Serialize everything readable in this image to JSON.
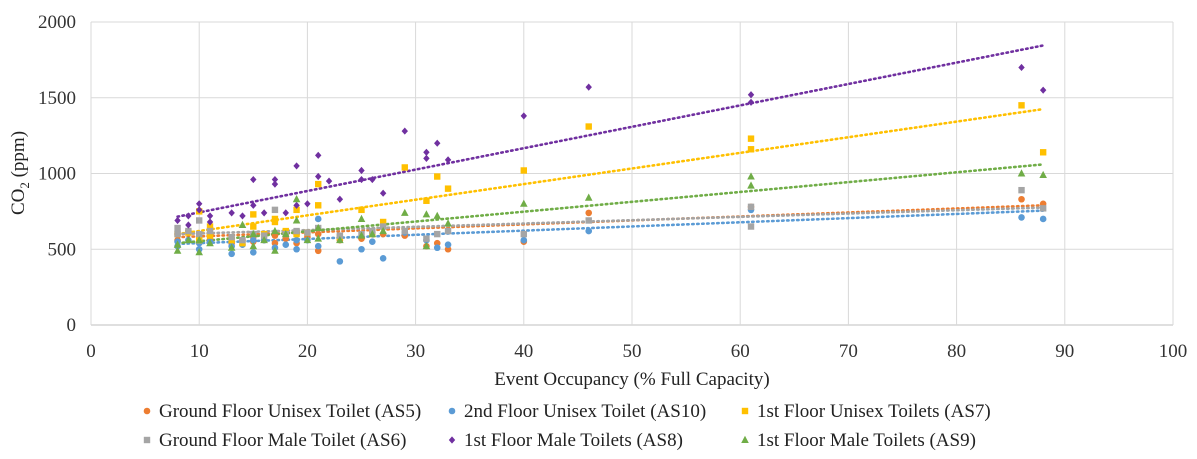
{
  "chart_data": {
    "type": "scatter",
    "title": "",
    "xlabel": "Event Occupancy (% Full Capacity)",
    "ylabel_main": "CO",
    "ylabel_sub": "2",
    "ylabel_suffix": " (ppm)",
    "xlim": [
      0,
      100
    ],
    "ylim": [
      0,
      2000
    ],
    "xticks": [
      0,
      10,
      20,
      30,
      40,
      50,
      60,
      70,
      80,
      90,
      100
    ],
    "yticks": [
      0,
      500,
      1000,
      1500,
      2000
    ],
    "grid": "horizontal and vertical",
    "legend_position": "bottom",
    "trendlines": "linear, dotted",
    "series": [
      {
        "name": "Ground Floor Unisex Toilet (AS5)",
        "color": "#ED7D31",
        "marker": "circle",
        "x": [
          8,
          8,
          9,
          10,
          10,
          11,
          11,
          13,
          14,
          15,
          15,
          16,
          17,
          17,
          18,
          19,
          19,
          20,
          21,
          21,
          23,
          25,
          26,
          27,
          29,
          31,
          32,
          33,
          40,
          46,
          61,
          86,
          88
        ],
        "y": [
          600,
          560,
          620,
          580,
          550,
          600,
          560,
          540,
          560,
          550,
          580,
          560,
          590,
          540,
          570,
          600,
          540,
          580,
          600,
          490,
          560,
          570,
          610,
          600,
          590,
          520,
          540,
          500,
          550,
          740,
          780,
          830,
          800
        ],
        "trend": [
          580,
          790
        ]
      },
      {
        "name": "2nd Floor Unisex Toilet (AS10)",
        "color": "#5B9BD5",
        "marker": "circle",
        "x": [
          8,
          8,
          9,
          10,
          10,
          11,
          13,
          13,
          14,
          15,
          15,
          16,
          17,
          18,
          19,
          19,
          20,
          21,
          21,
          23,
          25,
          26,
          27,
          29,
          31,
          32,
          33,
          40,
          46,
          61,
          86,
          88
        ],
        "y": [
          550,
          520,
          560,
          500,
          540,
          550,
          470,
          520,
          530,
          480,
          560,
          560,
          510,
          530,
          500,
          560,
          560,
          700,
          520,
          420,
          500,
          550,
          440,
          610,
          560,
          510,
          530,
          560,
          620,
          760,
          710,
          700
        ],
        "trend": [
          535,
          755
        ]
      },
      {
        "name": "1st Floor Unisex Toilets (AS7)",
        "color": "#FFC000",
        "marker": "square",
        "x": [
          8,
          9,
          10,
          10,
          11,
          11,
          13,
          14,
          15,
          15,
          16,
          17,
          17,
          18,
          19,
          19,
          20,
          21,
          21,
          23,
          25,
          26,
          27,
          29,
          31,
          32,
          33,
          40,
          46,
          61,
          61,
          86,
          88
        ],
        "y": [
          600,
          610,
          750,
          560,
          650,
          590,
          560,
          540,
          650,
          730,
          600,
          700,
          680,
          620,
          760,
          600,
          610,
          790,
          930,
          580,
          760,
          600,
          680,
          1040,
          820,
          980,
          900,
          1020,
          1310,
          1230,
          1160,
          1450,
          1140
        ],
        "trend": [
          600,
          1425
        ]
      },
      {
        "name": "Ground Floor Male Toilet (AS6)",
        "color": "#A5A5A5",
        "marker": "square",
        "x": [
          8,
          8,
          9,
          10,
          10,
          11,
          13,
          14,
          15,
          16,
          17,
          18,
          19,
          20,
          21,
          23,
          25,
          26,
          27,
          29,
          31,
          32,
          33,
          40,
          46,
          61,
          61,
          86,
          88
        ],
        "y": [
          640,
          600,
          620,
          690,
          600,
          620,
          580,
          560,
          600,
          590,
          760,
          600,
          620,
          610,
          640,
          590,
          600,
          620,
          650,
          620,
          570,
          600,
          620,
          600,
          690,
          650,
          780,
          890,
          770
        ],
        "trend": [
          600,
          775
        ]
      },
      {
        "name": "1st Floor Male Toilets (AS8)",
        "color": "#7030A0",
        "marker": "diamond",
        "x": [
          8,
          9,
          9,
          10,
          10,
          11,
          11,
          13,
          14,
          15,
          15,
          16,
          17,
          17,
          18,
          19,
          19,
          20,
          21,
          21,
          22,
          23,
          25,
          25,
          26,
          27,
          29,
          31,
          31,
          32,
          33,
          40,
          46,
          61,
          61,
          86,
          88
        ],
        "y": [
          690,
          660,
          720,
          800,
          760,
          720,
          680,
          740,
          720,
          960,
          790,
          740,
          960,
          930,
          740,
          1050,
          790,
          800,
          980,
          1120,
          950,
          830,
          1020,
          960,
          960,
          870,
          1280,
          1140,
          1100,
          1200,
          1090,
          1380,
          1570,
          1520,
          1470,
          1700,
          1550
        ],
        "trend": [
          715,
          1845
        ]
      },
      {
        "name": "1st Floor Male Toilets (AS9)",
        "color": "#70AD47",
        "marker": "triangle",
        "x": [
          8,
          8,
          9,
          10,
          10,
          11,
          13,
          14,
          15,
          15,
          16,
          17,
          17,
          18,
          19,
          19,
          20,
          21,
          21,
          23,
          25,
          25,
          26,
          27,
          29,
          31,
          31,
          32,
          33,
          40,
          46,
          61,
          61,
          86,
          88
        ],
        "y": [
          490,
          530,
          560,
          480,
          560,
          540,
          510,
          660,
          600,
          520,
          560,
          490,
          620,
          600,
          830,
          690,
          560,
          640,
          570,
          560,
          700,
          590,
          600,
          620,
          740,
          730,
          520,
          720,
          670,
          800,
          840,
          980,
          920,
          1000,
          990
        ],
        "trend": [
          540,
          1060
        ]
      }
    ]
  }
}
